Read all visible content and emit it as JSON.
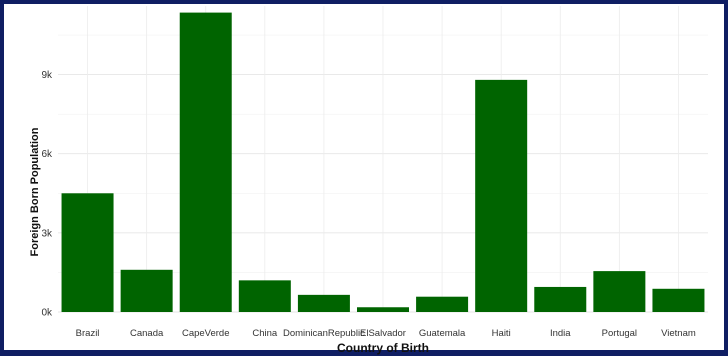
{
  "chart_data": {
    "type": "bar",
    "title": "",
    "xlabel": "Country of Birth",
    "ylabel": "Foreign Born Population",
    "categories": [
      "Brazil",
      "Canada",
      "CapeVerde",
      "China",
      "DominicanRepublic",
      "ElSalvador",
      "Guatemala",
      "Haiti",
      "India",
      "Portugal",
      "Vietnam"
    ],
    "values": [
      4500,
      1600,
      11350,
      1200,
      650,
      180,
      580,
      8800,
      950,
      1550,
      880
    ],
    "ylim": [
      0,
      11600
    ],
    "yticks": [
      0,
      3000,
      6000,
      9000
    ],
    "ytick_labels": [
      "0k",
      "3k",
      "6k",
      "9k"
    ],
    "grid": true,
    "legend": "none",
    "bar_color": "#006400",
    "frame_color": "#0f1e63"
  }
}
